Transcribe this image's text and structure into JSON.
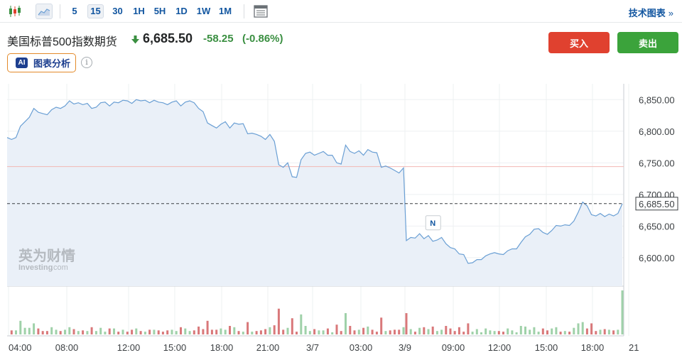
{
  "toolbar": {
    "chart_type_icons": [
      "candlestick-icon",
      "area-chart-icon"
    ],
    "timeframes": [
      "5",
      "15",
      "30",
      "1H",
      "5H",
      "1D",
      "1W",
      "1M"
    ],
    "active_timeframe": "15",
    "technical_link": "技术图表",
    "technical_chevron": "»"
  },
  "instrument": {
    "name": "美国标普500指数期货",
    "price": "6,685.50",
    "change": "-58.25",
    "change_percent": "(-0.86%)",
    "direction": "down",
    "change_color": "#3a8f41"
  },
  "actions": {
    "buy": "买入",
    "sell": "卖出"
  },
  "ai_analysis": {
    "badge": "AI",
    "label": "图表分析"
  },
  "watermark": {
    "cn": "英为财情",
    "en": "Investing",
    "en_suffix": ".com"
  },
  "chart_data": {
    "type": "area",
    "price_ticks": [
      "6,850.00",
      "6,800.00",
      "6,750.00",
      "6,700.00",
      "6,650.00",
      "6,600.00"
    ],
    "price_tick_values": [
      6850,
      6800,
      6750,
      6700,
      6650,
      6600
    ],
    "ylim": [
      6555,
      6875
    ],
    "current_price_label": "6,685.50",
    "current_price": 6685.5,
    "reference_line": 6744,
    "time_labels": [
      "04:00",
      "08:00",
      "12:00",
      "15:00",
      "18:00",
      "21:00",
      "3/7",
      "03:00",
      "3/9",
      "09:00",
      "12:00",
      "15:00",
      "18:00",
      "21"
    ],
    "grid": true,
    "news_marker": "N",
    "series_close": [
      6790,
      6787,
      6790,
      6808,
      6815,
      6822,
      6836,
      6830,
      6828,
      6826,
      6834,
      6838,
      6836,
      6840,
      6848,
      6843,
      6845,
      6842,
      6844,
      6836,
      6838,
      6845,
      6846,
      6840,
      6846,
      6845,
      6849,
      6848,
      6844,
      6850,
      6848,
      6849,
      6845,
      6849,
      6846,
      6845,
      6842,
      6846,
      6848,
      6840,
      6846,
      6848,
      6845,
      6836,
      6831,
      6813,
      6809,
      6805,
      6811,
      6815,
      6805,
      6813,
      6811,
      6812,
      6796,
      6797,
      6795,
      6792,
      6787,
      6795,
      6784,
      6747,
      6743,
      6750,
      6728,
      6727,
      6755,
      6765,
      6767,
      6762,
      6765,
      6768,
      6762,
      6762,
      6750,
      6748,
      6778,
      6768,
      6765,
      6769,
      6762,
      6771,
      6767,
      6766,
      6743,
      6745,
      6742,
      6738,
      6734,
      6742,
      6627,
      6632,
      6631,
      6638,
      6630,
      6635,
      6626,
      6628,
      6632,
      6622,
      6616,
      6614,
      6606,
      6605,
      6591,
      6592,
      6597,
      6597,
      6603,
      6606,
      6608,
      6606,
      6605,
      6611,
      6614,
      6614,
      6624,
      6633,
      6637,
      6645,
      6646,
      6640,
      6637,
      6643,
      6651,
      6650,
      6652,
      6651,
      6658,
      6672,
      6688,
      6682,
      6668,
      6666,
      6670,
      6665,
      6669,
      6666,
      6670,
      6685.5
    ],
    "volume_colors": [
      "up",
      "down"
    ],
    "volume_up_color": "#9fd1a9",
    "volume_down_color": "#d9787a",
    "line_color": "#6a9fd4",
    "fill_color": "#eaf0f8"
  }
}
